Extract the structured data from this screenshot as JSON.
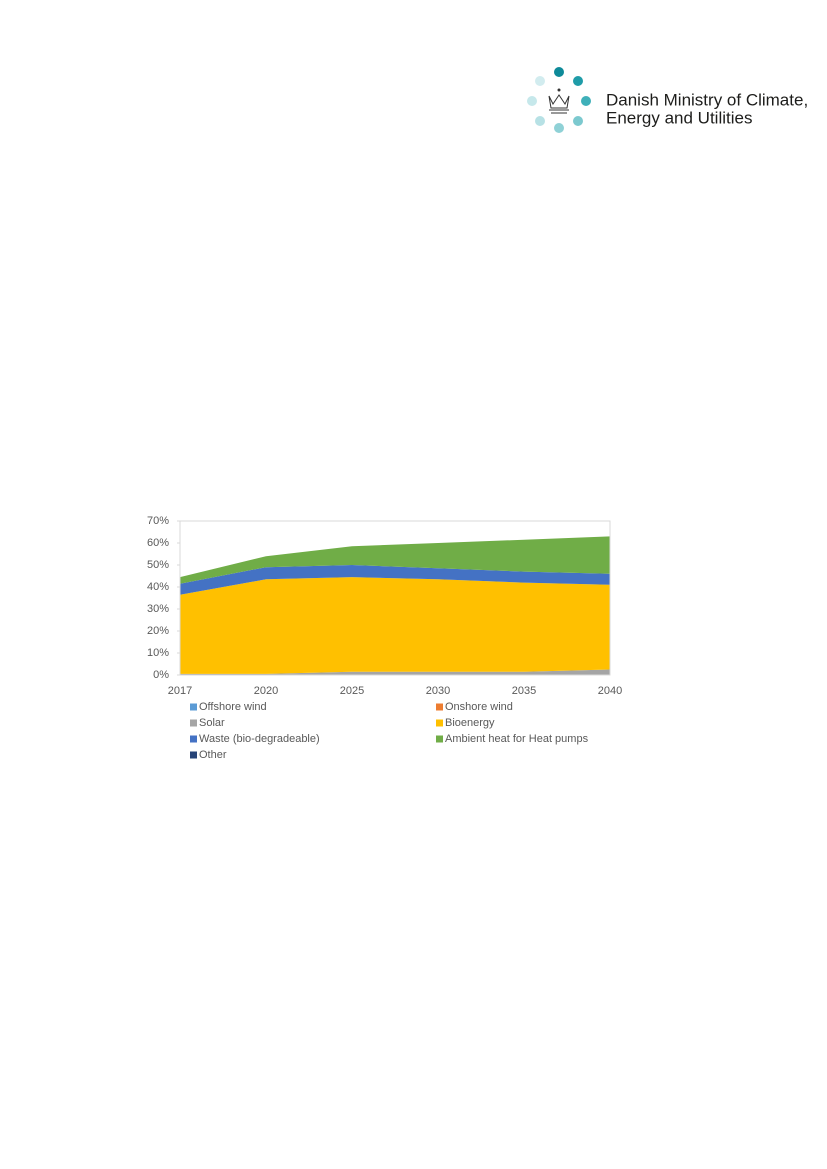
{
  "header": {
    "logo_lines": [
      "Danish Ministry of Climate,",
      "Energy and Utilities"
    ]
  },
  "chart_data": {
    "type": "stacked_area",
    "categories": [
      "2017",
      "2020",
      "2025",
      "2030",
      "2035",
      "2040"
    ],
    "series": [
      {
        "name": "Offshore wind",
        "color": "#5b9bd5",
        "values": [
          0,
          0,
          0,
          0,
          0,
          0
        ]
      },
      {
        "name": "Onshore wind",
        "color": "#ed7d31",
        "values": [
          0,
          0,
          0,
          0,
          0,
          0
        ]
      },
      {
        "name": "Solar",
        "color": "#a5a5a5",
        "values": [
          0.5,
          0.5,
          1.5,
          1.5,
          1.5,
          2.5
        ]
      },
      {
        "name": "Bioenergy",
        "color": "#ffc000",
        "values": [
          36,
          43,
          43,
          42,
          40.5,
          38.5
        ]
      },
      {
        "name": "Waste (bio-degradeable)",
        "color": "#4472c4",
        "values": [
          5,
          5.5,
          5.5,
          5,
          5,
          5
        ]
      },
      {
        "name": "Ambient heat for Heat pumps",
        "color": "#70ad47",
        "values": [
          3,
          5,
          8.5,
          11.5,
          14.5,
          17
        ]
      },
      {
        "name": "Other",
        "color": "#264478",
        "values": [
          0,
          0,
          0,
          0,
          0,
          0
        ]
      }
    ],
    "ylim": [
      0,
      70
    ],
    "yticks": [
      {
        "value": 0,
        "label": "0%"
      },
      {
        "value": 10,
        "label": "10%"
      },
      {
        "value": 20,
        "label": "20%"
      },
      {
        "value": 30,
        "label": "30%"
      },
      {
        "value": 40,
        "label": "40%"
      },
      {
        "value": 50,
        "label": "50%"
      },
      {
        "value": 60,
        "label": "60%"
      },
      {
        "value": 70,
        "label": "70%"
      }
    ],
    "grid": false
  }
}
